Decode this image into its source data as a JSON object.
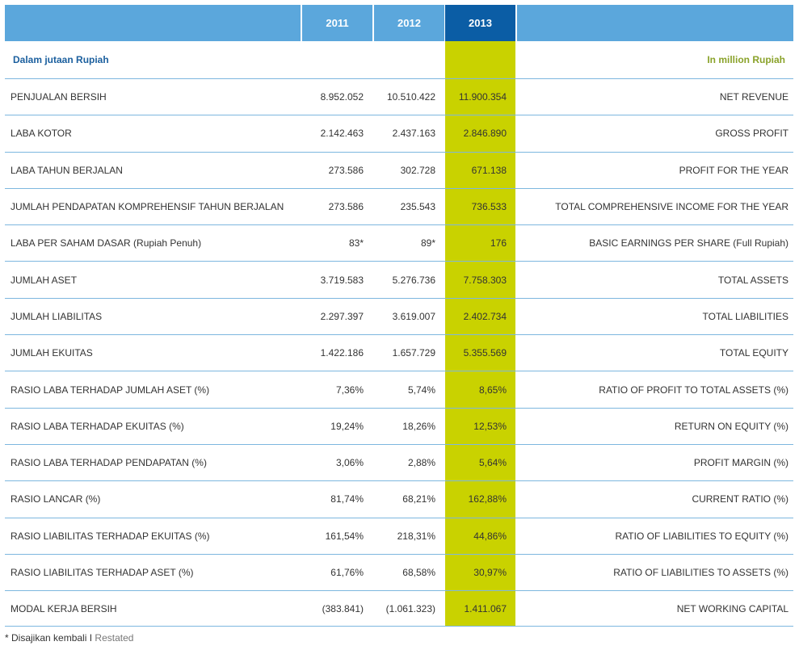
{
  "header": {
    "years": [
      "2011",
      "2012",
      "2013"
    ],
    "highlight_color": "#c9d200",
    "header_color": "#5ba7dc",
    "active_header_color": "#0b5da5"
  },
  "units": {
    "left": "Dalam jutaan Rupiah",
    "right": "In million Rupiah"
  },
  "rows": [
    {
      "label": "PENJUALAN BERSIH",
      "y2011": "8.952.052",
      "y2012": "10.510.422",
      "y2013": "11.900.354",
      "en": "NET REVENUE"
    },
    {
      "label": "LABA KOTOR",
      "y2011": "2.142.463",
      "y2012": "2.437.163",
      "y2013": "2.846.890",
      "en": "GROSS PROFIT"
    },
    {
      "label": "LABA TAHUN BERJALAN",
      "y2011": "273.586",
      "y2012": "302.728",
      "y2013": "671.138",
      "en": "PROFIT FOR THE YEAR"
    },
    {
      "label": "JUMLAH PENDAPATAN KOMPREHENSIF TAHUN BERJALAN",
      "y2011": "273.586",
      "y2012": "235.543",
      "y2013": "736.533",
      "en": "TOTAL COMPREHENSIVE INCOME FOR THE YEAR"
    },
    {
      "label": "LABA PER SAHAM DASAR (Rupiah Penuh)",
      "y2011": "83*",
      "y2012": "89*",
      "y2013": "176",
      "en": "BASIC EARNINGS PER SHARE (Full Rupiah)"
    },
    {
      "label": "JUMLAH ASET",
      "y2011": "3.719.583",
      "y2012": "5.276.736",
      "y2013": "7.758.303",
      "en": "TOTAL ASSETS"
    },
    {
      "label": "JUMLAH LIABILITAS",
      "y2011": "2.297.397",
      "y2012": "3.619.007",
      "y2013": "2.402.734",
      "en": "TOTAL LIABILITIES"
    },
    {
      "label": "JUMLAH EKUITAS",
      "y2011": "1.422.186",
      "y2012": "1.657.729",
      "y2013": "5.355.569",
      "en": "TOTAL EQUITY"
    },
    {
      "label": "RASIO LABA TERHADAP JUMLAH ASET (%)",
      "y2011": "7,36%",
      "y2012": "5,74%",
      "y2013": "8,65%",
      "en": "RATIO OF PROFIT TO TOTAL ASSETS (%)"
    },
    {
      "label": "RASIO LABA TERHADAP EKUITAS (%)",
      "y2011": "19,24%",
      "y2012": "18,26%",
      "y2013": "12,53%",
      "en": "RETURN ON EQUITY (%)"
    },
    {
      "label": "RASIO LABA TERHADAP PENDAPATAN (%)",
      "y2011": "3,06%",
      "y2012": "2,88%",
      "y2013": "5,64%",
      "en": "PROFIT MARGIN (%)"
    },
    {
      "label": "RASIO LANCAR (%)",
      "y2011": "81,74%",
      "y2012": "68,21%",
      "y2013": "162,88%",
      "en": "CURRENT RATIO (%)"
    },
    {
      "label": "RASIO LIABILITAS TERHADAP EKUITAS (%)",
      "y2011": "161,54%",
      "y2012": "218,31%",
      "y2013": "44,86%",
      "en": "RATIO OF LIABILITIES TO EQUITY (%)"
    },
    {
      "label": "RASIO LIABILITAS TERHADAP ASET (%)",
      "y2011": "61,76%",
      "y2012": "68,58%",
      "y2013": "30,97%",
      "en": "RATIO OF LIABILITIES TO ASSETS (%)"
    },
    {
      "label": "MODAL KERJA BERSIH",
      "y2011": "(383.841)",
      "y2012": "(1.061.323)",
      "y2013": "1.411.067",
      "en": "NET WORKING CAPITAL"
    }
  ],
  "footnote": {
    "prefix": "* Disajikan kembali",
    "separator": "I",
    "en": "Restated"
  }
}
